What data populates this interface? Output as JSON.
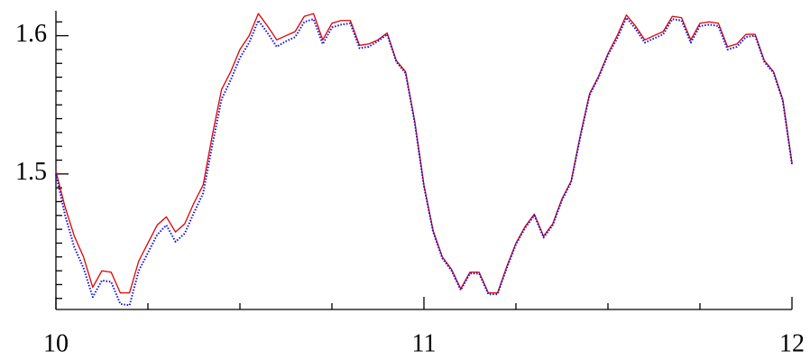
{
  "chart_data": {
    "type": "line",
    "x": [
      10,
      10.025,
      10.05,
      10.075,
      10.1,
      10.125,
      10.15,
      10.175,
      10.2,
      10.225,
      10.25,
      10.275,
      10.3,
      10.325,
      10.35,
      10.375,
      10.4,
      10.425,
      10.45,
      10.475,
      10.5,
      10.525,
      10.55,
      10.575,
      10.6,
      10.625,
      10.65,
      10.675,
      10.7,
      10.725,
      10.75,
      10.775,
      10.8,
      10.825,
      10.85,
      10.875,
      10.9,
      10.925,
      10.95,
      10.975,
      11,
      11.025,
      11.05,
      11.075,
      11.1,
      11.125,
      11.15,
      11.175,
      11.2,
      11.225,
      11.25,
      11.275,
      11.3,
      11.325,
      11.35,
      11.375,
      11.4,
      11.425,
      11.45,
      11.475,
      11.5,
      11.525,
      11.55,
      11.575,
      11.6,
      11.625,
      11.65,
      11.675,
      11.7,
      11.725,
      11.75,
      11.775,
      11.8,
      11.825,
      11.85,
      11.875,
      11.9,
      11.925,
      11.95,
      11.975,
      12
    ],
    "series": [
      {
        "color": "#e00000",
        "dash": false,
        "values": [
          1.502,
          1.476,
          1.455,
          1.44,
          1.418,
          1.43,
          1.429,
          1.414,
          1.414,
          1.437,
          1.45,
          1.463,
          1.469,
          1.458,
          1.464,
          1.479,
          1.492,
          1.528,
          1.561,
          1.574,
          1.59,
          1.6,
          1.616,
          1.607,
          1.597,
          1.6,
          1.603,
          1.614,
          1.616,
          1.597,
          1.609,
          1.611,
          1.611,
          1.593,
          1.594,
          1.597,
          1.602,
          1.582,
          1.574,
          1.538,
          1.492,
          1.459,
          1.44,
          1.431,
          1.417,
          1.429,
          1.429,
          1.414,
          1.414,
          1.433,
          1.45,
          1.462,
          1.471,
          1.455,
          1.464,
          1.482,
          1.495,
          1.528,
          1.558,
          1.571,
          1.587,
          1.6,
          1.615,
          1.607,
          1.597,
          1.6,
          1.603,
          1.614,
          1.613,
          1.597,
          1.609,
          1.61,
          1.609,
          1.592,
          1.594,
          1.601,
          1.601,
          1.582,
          1.574,
          1.554,
          1.508
        ]
      },
      {
        "color": "#1010e0",
        "dash": true,
        "values": [
          1.5,
          1.47,
          1.447,
          1.432,
          1.411,
          1.423,
          1.422,
          1.406,
          1.405,
          1.43,
          1.443,
          1.456,
          1.463,
          1.451,
          1.457,
          1.472,
          1.486,
          1.521,
          1.554,
          1.568,
          1.584,
          1.595,
          1.611,
          1.602,
          1.592,
          1.596,
          1.599,
          1.61,
          1.612,
          1.594,
          1.606,
          1.608,
          1.609,
          1.591,
          1.592,
          1.596,
          1.601,
          1.581,
          1.573,
          1.537,
          1.491,
          1.458,
          1.439,
          1.43,
          1.416,
          1.428,
          1.428,
          1.413,
          1.413,
          1.432,
          1.449,
          1.461,
          1.47,
          1.454,
          1.463,
          1.481,
          1.494,
          1.527,
          1.557,
          1.57,
          1.586,
          1.598,
          1.613,
          1.605,
          1.595,
          1.598,
          1.601,
          1.612,
          1.611,
          1.595,
          1.607,
          1.608,
          1.607,
          1.59,
          1.592,
          1.599,
          1.6,
          1.581,
          1.573,
          1.553,
          1.507
        ]
      }
    ],
    "xlim": [
      10,
      12
    ],
    "ylim": [
      1.402,
      1.618
    ],
    "xticks": [
      10,
      11,
      12
    ],
    "yticks": [
      1.5,
      1.6
    ],
    "xminorticks": [
      10.25,
      10.5,
      10.75,
      11.25,
      11.5,
      11.75
    ],
    "yminorticks": [
      1.41,
      1.42,
      1.43,
      1.44,
      1.45,
      1.46,
      1.47,
      1.48,
      1.49,
      1.51,
      1.52,
      1.53,
      1.54,
      1.55,
      1.56,
      1.57,
      1.58,
      1.59,
      1.61
    ]
  }
}
